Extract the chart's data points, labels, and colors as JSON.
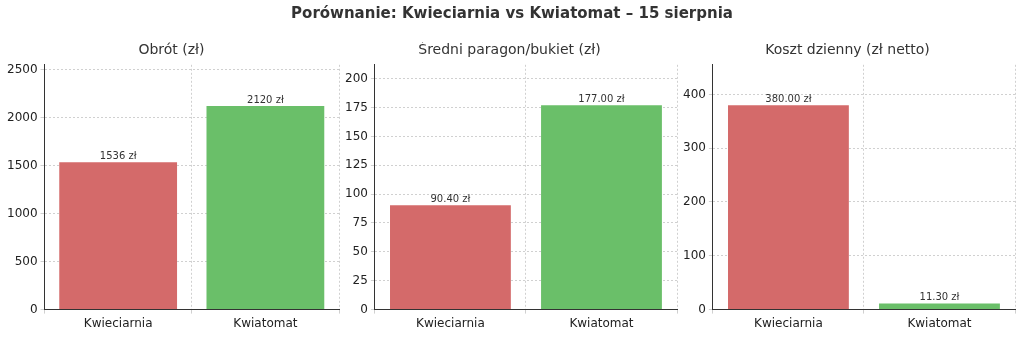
{
  "chart_data": [
    {
      "type": "bar",
      "title": "Obrót (zł)",
      "annotations": [
        "Porównanie: Kwieciarnia vs Kwiatomat – 15 sierpnia"
      ],
      "categories": [
        "Kwieciarnia",
        "Kwiatomat"
      ],
      "values": [
        1536,
        2120
      ],
      "colors": [
        "#d46a6a",
        "#6abf69"
      ],
      "value_labels": [
        "1536 zł",
        "2120 zł"
      ],
      "ylim": [
        0,
        2550
      ],
      "yticks": [
        0,
        500,
        1000,
        1500,
        2000,
        2500
      ],
      "grid": true
    },
    {
      "type": "bar",
      "title": "Średni paragon/bukiet (zł)",
      "categories": [
        "Kwieciarnia",
        "Kwiatomat"
      ],
      "values": [
        90.4,
        177
      ],
      "colors": [
        "#d46a6a",
        "#6abf69"
      ],
      "value_labels": [
        "90.40 zł",
        "177.00 zł"
      ],
      "ylim": [
        0,
        212
      ],
      "yticks": [
        0,
        25,
        50,
        75,
        100,
        125,
        150,
        175,
        200
      ],
      "grid": true
    },
    {
      "type": "bar",
      "title": "Koszt dzienny (zł netto)",
      "categories": [
        "Kwieciarnia",
        "Kwiatomat"
      ],
      "values": [
        380,
        11.3
      ],
      "colors": [
        "#d46a6a",
        "#6abf69"
      ],
      "value_labels": [
        "380.00 zł",
        "11.30 zł"
      ],
      "ylim": [
        0,
        455
      ],
      "yticks": [
        0,
        100,
        200,
        300,
        400
      ],
      "grid": true
    }
  ]
}
